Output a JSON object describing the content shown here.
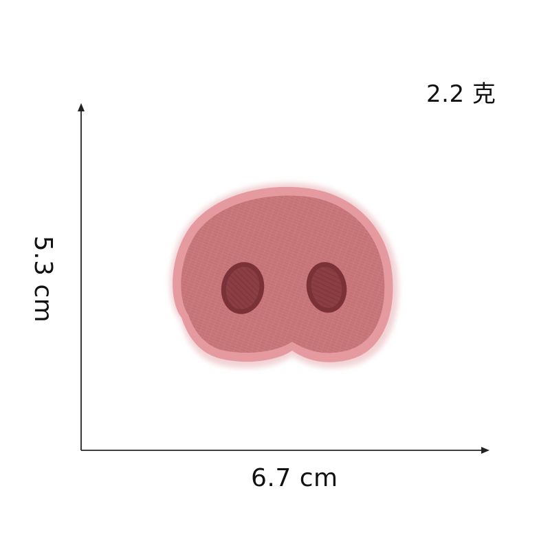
{
  "product": {
    "weight_label": "2.2 克",
    "width_label": "6.7 cm",
    "height_label": "5.3 cm",
    "illustration": "pig-nose-embroidered-patch"
  },
  "colors": {
    "patch_fill": "#c8777b",
    "patch_border": "#e59aa0",
    "nostril_fill": "#8b3f45",
    "nostril_outline": "#7a3138",
    "patch_shadow": "#f2d3d5",
    "axis": "#222222",
    "background": "#ffffff"
  }
}
